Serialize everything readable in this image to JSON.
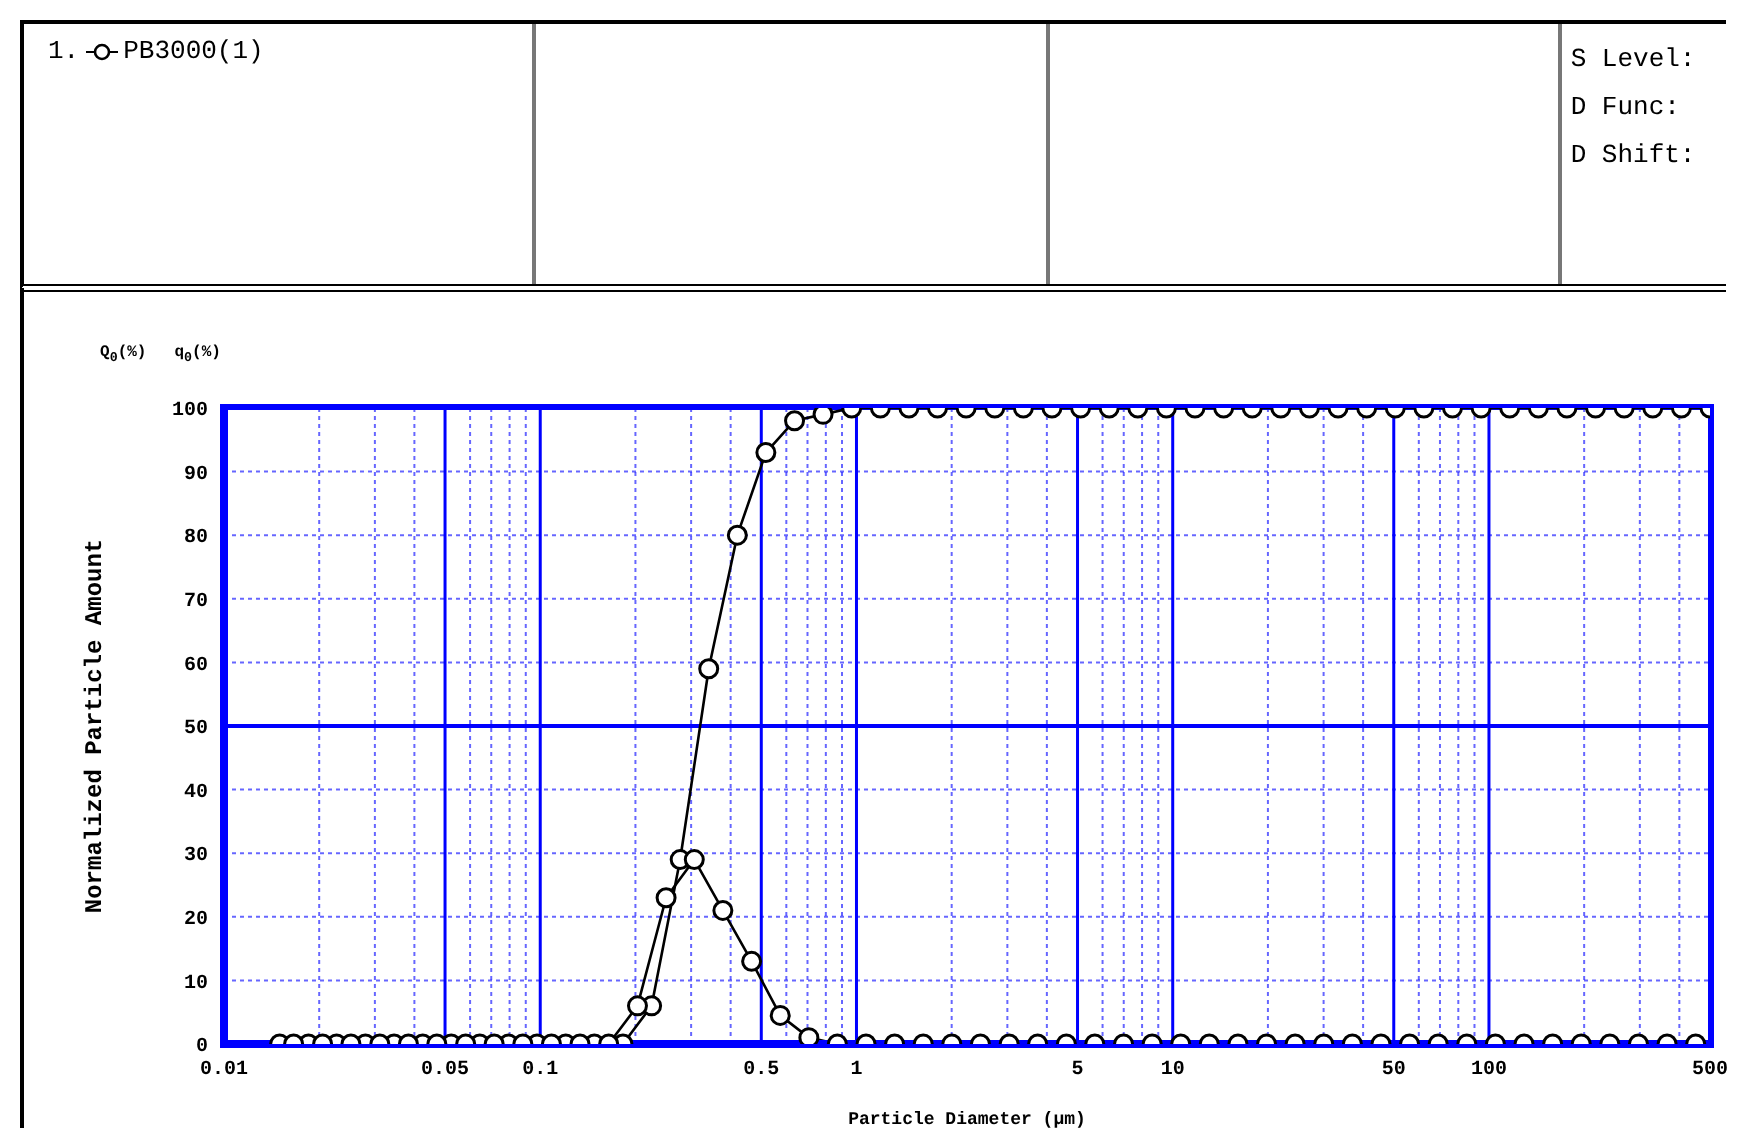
{
  "chart_data": {
    "type": "line",
    "xlabel": "Particle Diameter      (μm)",
    "ylabel": "Normalized Particle Amount",
    "annotations": [
      "1.",
      "PB3000(1)",
      "S Level:",
      "D Func:",
      "D Shift:",
      "Q$_{0}$(%)",
      "q$_{0}$(%)"
    ],
    "log": "x",
    "grid": true,
    "marker": "circle",
    "line_style": "solid",
    "xlim": [
      0.01,
      500
    ],
    "ylim": [
      0,
      100
    ],
    "xticks": [
      0.01,
      {
        "value": 0.02,
        "label": null
      },
      {
        "value": 0.03,
        "label": null
      },
      {
        "value": 0.04,
        "label": null
      },
      0.05,
      {
        "value": 0.06,
        "label": null
      },
      {
        "value": 0.07,
        "label": null
      },
      {
        "value": 0.08,
        "label": null
      },
      {
        "value": 0.09,
        "label": null
      },
      0.1,
      {
        "value": 0.2,
        "label": null
      },
      {
        "value": 0.3,
        "label": null
      },
      {
        "value": 0.4,
        "label": null
      },
      0.5,
      {
        "value": 0.6,
        "label": null
      },
      {
        "value": 0.7,
        "label": null
      },
      {
        "value": 0.8,
        "label": null
      },
      {
        "value": 0.9,
        "label": null
      },
      1,
      {
        "value": 2,
        "label": null
      },
      {
        "value": 3,
        "label": null
      },
      {
        "value": 4,
        "label": null
      },
      5,
      {
        "value": 6,
        "label": null
      },
      {
        "value": 7,
        "label": null
      },
      {
        "value": 8,
        "label": null
      },
      {
        "value": 9,
        "label": null
      },
      10,
      {
        "value": 20,
        "label": null
      },
      {
        "value": 30,
        "label": null
      },
      {
        "value": 40,
        "label": null
      },
      50,
      {
        "value": 60,
        "label": null
      },
      {
        "value": 70,
        "label": null
      },
      {
        "value": 80,
        "label": null
      },
      {
        "value": 90,
        "label": null
      },
      100,
      {
        "value": 200,
        "label": null
      },
      {
        "value": 300,
        "label": null
      },
      {
        "value": 400,
        "label": null
      },
      500
    ],
    "yticks": [
      0,
      10,
      20,
      30,
      40,
      50,
      60,
      70,
      80,
      90,
      100
    ],
    "ref_lines": [
      {
        "axis": "y",
        "value": 50,
        "color": "#0000ff"
      }
    ],
    "series": [
      {
        "color": "#000000",
        "x": [
          0.015,
          0.0185,
          0.0227,
          0.028,
          0.0345,
          0.0425,
          0.0523,
          0.0644,
          0.0794,
          0.0977,
          0.1204,
          0.1483,
          0.1826,
          0.225,
          0.277,
          0.341,
          0.42,
          0.517,
          0.637,
          0.784,
          0.966,
          1.19,
          1.465,
          1.804,
          2.222,
          2.737,
          3.371,
          4.151,
          5.113,
          6.297,
          7.755,
          9.55,
          11.76,
          14.49,
          17.84,
          21.97,
          27.06,
          33.33,
          41.05,
          50.55,
          62.26,
          76.68,
          94.44,
          116.3,
          143.3,
          176.4,
          217.3,
          267.6,
          329.6,
          406,
          500
        ],
        "values": [
          0,
          0,
          0,
          0,
          0,
          0,
          0,
          0,
          0,
          0,
          0,
          0,
          0,
          6,
          29,
          59,
          80,
          93,
          98,
          99,
          100,
          100,
          100,
          100,
          100,
          100,
          100,
          100,
          100,
          100,
          100,
          100,
          100,
          100,
          100,
          100,
          100,
          100,
          100,
          100,
          100,
          100,
          100,
          100,
          100,
          100,
          100,
          100,
          100,
          100,
          100
        ]
      },
      {
        "color": "#000000",
        "x": [
          0.0166,
          0.0205,
          0.0252,
          0.0311,
          0.0383,
          0.0471,
          0.0581,
          0.0715,
          0.0881,
          0.1085,
          0.1336,
          0.1646,
          0.203,
          0.25,
          0.307,
          0.378,
          0.466,
          0.574,
          0.707,
          0.87,
          1.072,
          1.32,
          1.626,
          2.002,
          2.466,
          3.04,
          3.74,
          4.61,
          5.67,
          6.99,
          8.61,
          10.6,
          13.05,
          16.08,
          19.8,
          24.38,
          30.03,
          36.99,
          45.55,
          56.1,
          69.1,
          85.1,
          104.8,
          129.1,
          159,
          195.8,
          241.1,
          297,
          365.8,
          450.5
        ],
        "values": [
          0,
          0,
          0,
          0,
          0,
          0,
          0,
          0,
          0,
          0,
          0,
          0,
          6,
          23,
          29,
          21,
          13,
          4.5,
          1,
          0,
          0,
          0,
          0,
          0,
          0,
          0,
          0,
          0,
          0,
          0,
          0,
          0,
          0,
          0,
          0,
          0,
          0,
          0,
          0,
          0,
          0,
          0,
          0,
          0,
          0,
          0,
          0,
          0,
          0,
          0
        ]
      }
    ]
  }
}
